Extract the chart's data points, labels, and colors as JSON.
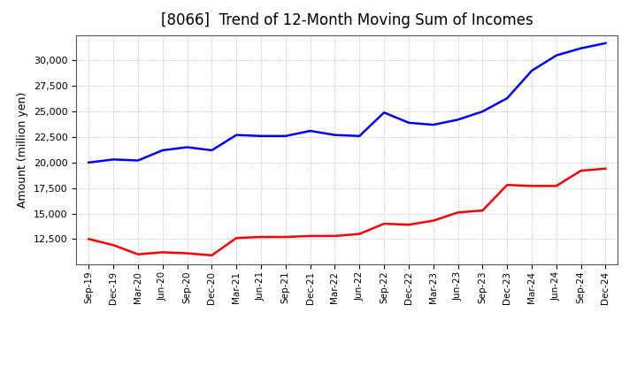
{
  "title": "[8066]  Trend of 12-Month Moving Sum of Incomes",
  "ylabel": "Amount (million yen)",
  "x_labels": [
    "Sep-19",
    "Dec-19",
    "Mar-20",
    "Jun-20",
    "Sep-20",
    "Dec-20",
    "Mar-21",
    "Jun-21",
    "Sep-21",
    "Dec-21",
    "Mar-22",
    "Jun-22",
    "Sep-22",
    "Dec-22",
    "Mar-23",
    "Jun-23",
    "Sep-23",
    "Dec-23",
    "Mar-24",
    "Jun-24",
    "Sep-24",
    "Dec-24"
  ],
  "ordinary_income": [
    20000,
    20300,
    20200,
    21200,
    21500,
    21200,
    22700,
    22600,
    22600,
    23100,
    22700,
    22600,
    24900,
    23900,
    23700,
    24200,
    25000,
    26300,
    29000,
    30500,
    31200,
    31700
  ],
  "net_income": [
    12500,
    11900,
    11000,
    11200,
    11100,
    10900,
    12600,
    12700,
    12700,
    12800,
    12800,
    13000,
    14000,
    13900,
    14300,
    15100,
    15300,
    17800,
    17700,
    17700,
    19200,
    19400
  ],
  "ordinary_color": "#0000FF",
  "net_color": "#FF0000",
  "ylim_min": 10000,
  "ylim_max": 32500,
  "yticks": [
    12500,
    15000,
    17500,
    20000,
    22500,
    25000,
    27500,
    30000
  ],
  "background_color": "#FFFFFF",
  "grid_color": "#AAAAAA",
  "title_fontsize": 12,
  "legend_fontsize": 9,
  "line_width": 1.8
}
